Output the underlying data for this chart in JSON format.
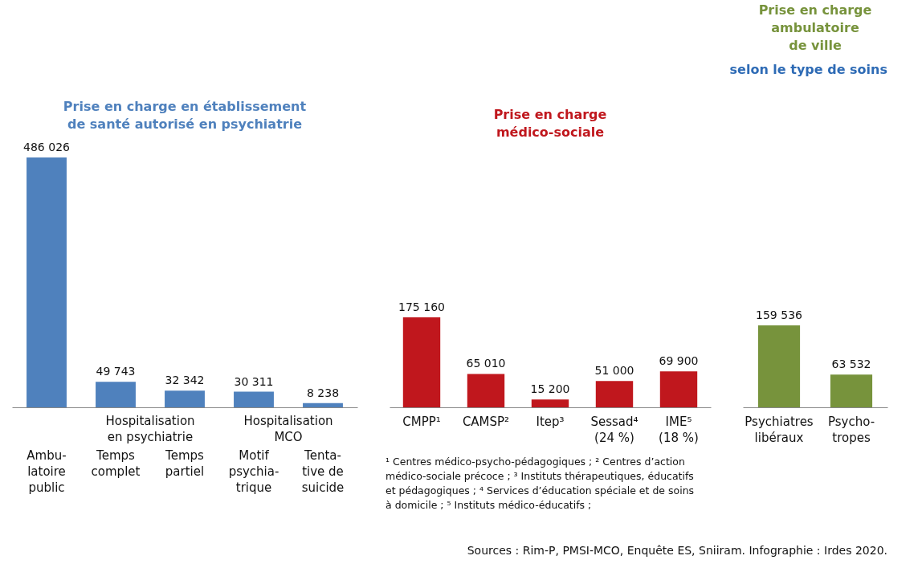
{
  "chart_data": [
    {
      "type": "bar",
      "title": "Prise en charge en établissement\nde santé autorisé en psychiatrie",
      "categories": [
        "Ambu-\nlatoire\npublic",
        "Temps\ncomplet",
        "Temps\npartiel",
        "Motif\npsychia-\ntrique",
        "Tenta-\ntive de\nsuicide"
      ],
      "values": [
        486026,
        49743,
        32342,
        30311,
        8238
      ],
      "color": "#4f81bd",
      "value_labels": [
        "486 026",
        "49 743",
        "32 342",
        "30 311",
        "8 238"
      ],
      "tick_labels": "x",
      "annotations": [
        "Hospitalisation\nen psychiatrie",
        "Hospitalisation\nMCO"
      ]
    },
    {
      "type": "bar",
      "title": "Prise en charge\nmédico-sociale",
      "categories": [
        "CMPP¹",
        "CAMSP²",
        "Itep³",
        "Sessad⁴\n(24 %)",
        "IME⁵\n(18 %)"
      ],
      "values": [
        175160,
        65010,
        15200,
        51000,
        69900
      ],
      "color": "#c0171d",
      "value_labels": [
        "175 160",
        "65 010",
        "15 200",
        "51 000",
        "69 900"
      ],
      "tick_labels": "x",
      "annotations": [
        "¹ Centres médico-psycho-pédagogiques ; ² Centres d’action\nmédico-sociale précoce ; ³ Instituts thérapeutiques, éducatifs\net pédagogiques ; ⁴ Services d’éducation spéciale et de soins\nà domicile ; ⁵ Instituts médico-éducatifs ;"
      ]
    },
    {
      "type": "bar",
      "title": "Prise en charge\nambulatoire\nde ville",
      "categories": [
        "Psychiatres\nlibéraux",
        "Psycho-\ntropes"
      ],
      "values": [
        159536,
        63532
      ],
      "color": "#77933c",
      "value_labels": [
        "159 536",
        "63 532"
      ],
      "tick_labels": "x",
      "annotations": [
        "Sources : Rim-P, PMSI-MCO, Enquête ES, Sniiram. Infographie : Irdes 2020.",
        "selon le type de soins"
      ]
    }
  ]
}
